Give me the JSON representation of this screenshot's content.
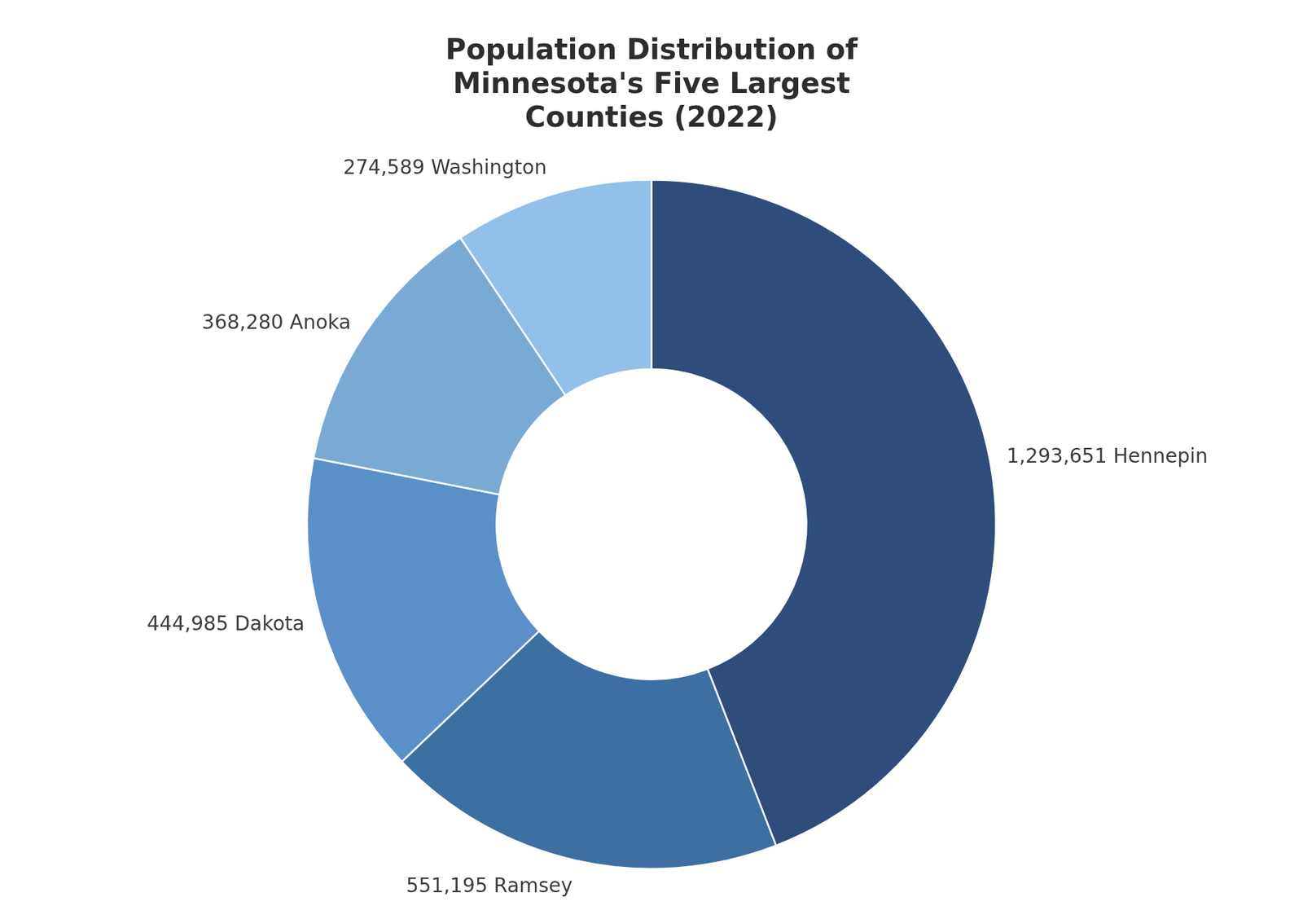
{
  "chart_data": {
    "type": "doughnut",
    "title": "Population Distribution of\nMinnesota's Five Largest\nCounties (2022)",
    "categories": [
      "Hennepin",
      "Ramsey",
      "Dakota",
      "Anoka",
      "Washington"
    ],
    "values": [
      1293651,
      551195,
      444985,
      368280,
      274589
    ],
    "value_labels": [
      "1,293,651 Hennepin",
      "551,195 Ramsey",
      "444,985 Dakota",
      "368,280 Anoka",
      "274,589 Washington"
    ],
    "colors": [
      "#2e4d7b",
      "#3d6fa3",
      "#5b8fc9",
      "#7aaad4",
      "#92c0e8"
    ],
    "data_labels": true,
    "legend": false
  }
}
